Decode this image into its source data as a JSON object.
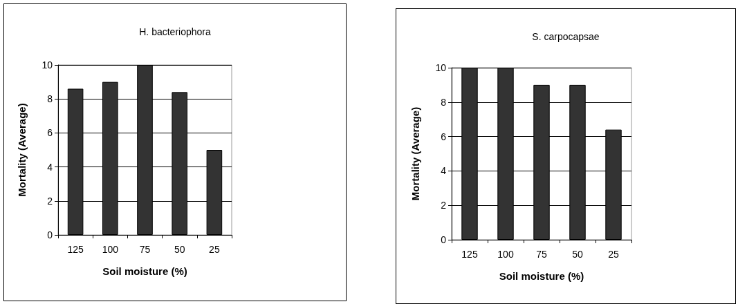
{
  "chart_data": [
    {
      "type": "bar",
      "title": "H. bacteriophora",
      "xlabel": "Soil moisture (%)",
      "ylabel": "Mortality (Average)",
      "categories": [
        "125",
        "100",
        "75",
        "50",
        "25"
      ],
      "values": [
        8.6,
        9.0,
        10,
        8.4,
        5.0
      ],
      "color": "#333333",
      "ylim": [
        0,
        10
      ],
      "yticks": [
        0,
        2,
        4,
        6,
        8,
        10
      ],
      "grid": "y"
    },
    {
      "type": "bar",
      "title": "S. carpocapsae",
      "xlabel": "Soil moisture (%)",
      "ylabel": "Mortality (Average)",
      "categories": [
        "125",
        "100",
        "75",
        "50",
        "25"
      ],
      "values": [
        10,
        10,
        9.0,
        9.0,
        6.4
      ],
      "color": "#333333",
      "ylim": [
        0,
        10
      ],
      "yticks": [
        0,
        2,
        4,
        6,
        8,
        10
      ],
      "grid": "y"
    }
  ]
}
